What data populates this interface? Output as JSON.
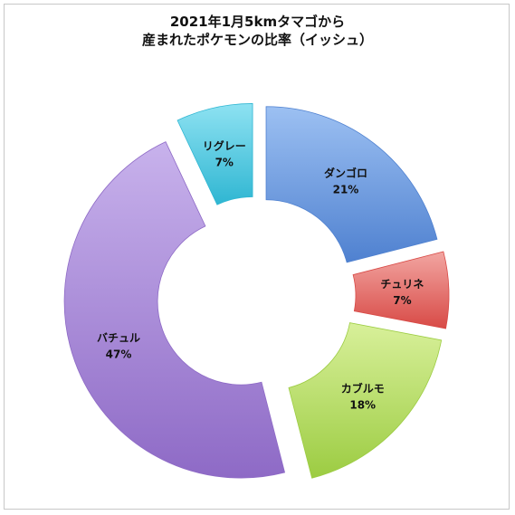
{
  "chart_data": {
    "type": "pie",
    "variant": "exploded-doughnut",
    "title": [
      "2021年1月5kmタマゴから",
      "産まれたポケモンの比率（イッシュ）"
    ],
    "slices": [
      {
        "name": "ダンゴロ",
        "value": 21,
        "pct_label": "21%",
        "color": "#4f81d0",
        "color_light": "#9cc0f2"
      },
      {
        "name": "チュリネ",
        "value": 7,
        "pct_label": "7%",
        "color": "#d84a46",
        "color_light": "#f2a6a2"
      },
      {
        "name": "カブルモ",
        "value": 18,
        "pct_label": "18%",
        "color": "#9ccc42",
        "color_light": "#d8f09a"
      },
      {
        "name": "バチュル",
        "value": 47,
        "pct_label": "47%",
        "color": "#8e6ac6",
        "color_light": "#c8b2ec"
      },
      {
        "name": "リグレー",
        "value": 7,
        "pct_label": "7%",
        "color": "#2fb6d2",
        "color_light": "#8ee2f2"
      }
    ],
    "legend": "none"
  }
}
